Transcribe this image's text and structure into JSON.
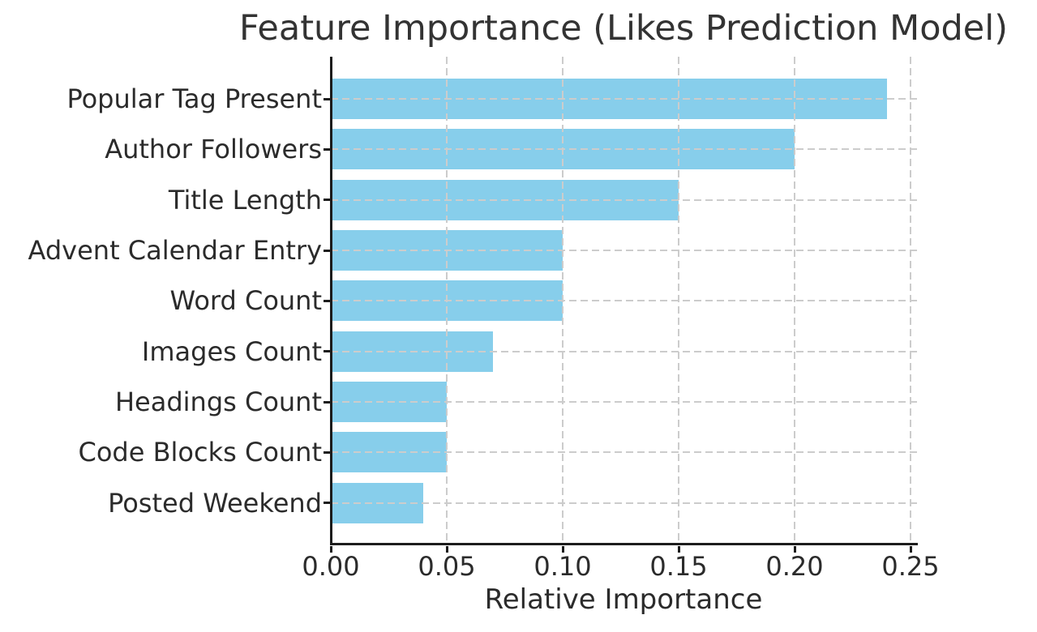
{
  "chart_data": {
    "type": "bar",
    "orientation": "horizontal",
    "title": "Feature Importance (Likes Prediction Model)",
    "xlabel": "Relative Importance",
    "ylabel": "",
    "categories": [
      "Popular Tag Present",
      "Author Followers",
      "Title Length",
      "Advent Calendar Entry",
      "Word Count",
      "Images Count",
      "Headings Count",
      "Code Blocks Count",
      "Posted Weekend"
    ],
    "values": [
      0.24,
      0.2,
      0.15,
      0.1,
      0.1,
      0.07,
      0.05,
      0.05,
      0.04
    ],
    "xlim": [
      0,
      0.2528
    ],
    "x_ticks": [
      0.0,
      0.05,
      0.1,
      0.15,
      0.2,
      0.25
    ],
    "x_tick_labels": [
      "0.00",
      "0.05",
      "0.10",
      "0.15",
      "0.20",
      "0.25"
    ],
    "grid": true,
    "grid_style": "dashed",
    "legend": null,
    "colors": {
      "bar": "#87CEEB",
      "grid": "#cccccc",
      "spine": "#1c1c1c",
      "text": "#2b2b2b",
      "background": "#ffffff"
    }
  }
}
